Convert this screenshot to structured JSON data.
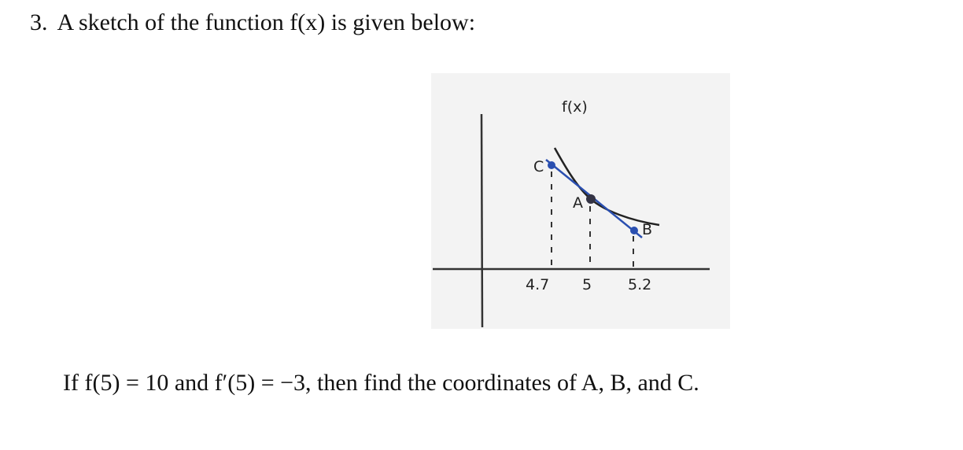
{
  "problem": {
    "number": "3.",
    "prompt": "A sketch of the function f(x) is given below:",
    "sketch": {
      "curve_label": "f(x)",
      "point_labels": [
        "C",
        "A",
        "B"
      ],
      "x_labels": [
        4.7,
        5,
        5.2
      ]
    },
    "question": "If f(5) = 10 and f′(5) = −3, then find the coordinates of A, B, and C."
  }
}
